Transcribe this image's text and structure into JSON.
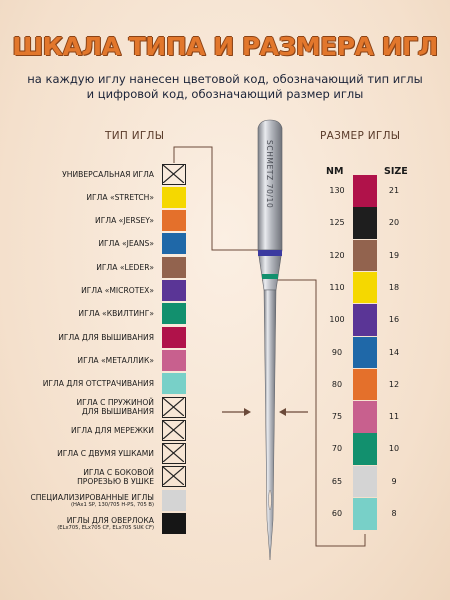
{
  "title": "ШКАЛА ТИПА И РАЗМЕРА ИГЛ",
  "subtitle_line1": "на каждую иглу нанесен цветовой код, обозначающий тип иглы",
  "subtitle_line2": "и цифровой код, обозначающий размер иглы",
  "type_heading": "ТИП ИГЛЫ",
  "size_heading": "РАЗМЕР ИГЛЫ",
  "nm_label": "NM",
  "size_label": "SIZE",
  "needle_text": "SCHMETZ 70/10",
  "types": [
    {
      "label": "УНИВЕРСАЛЬНАЯ ИГЛА",
      "color": "none"
    },
    {
      "label": "ИГЛА «STRETCH»",
      "color": "#f5d800"
    },
    {
      "label": "ИГЛА «JERSEY»",
      "color": "#e4702b"
    },
    {
      "label": "ИГЛА «JEANS»",
      "color": "#1f68a8"
    },
    {
      "label": "ИГЛА «LEDER»",
      "color": "#92634e"
    },
    {
      "label": "ИГЛА «MICROTEX»",
      "color": "#5a3596"
    },
    {
      "label": "ИГЛА «КВИЛТИНГ»",
      "color": "#12906e"
    },
    {
      "label": "ИГЛА ДЛЯ ВЫШИВАНИЯ",
      "color": "#b0124a"
    },
    {
      "label": "ИГЛА «МЕТАЛЛИК»",
      "color": "#c8608e"
    },
    {
      "label": "ИГЛА ДЛЯ ОТСТРАЧИВАНИЯ",
      "color": "#78d0c8"
    },
    {
      "label": "ИГЛА С ПРУЖИНОЙ",
      "label2": "ДЛЯ ВЫШИВАНИЯ",
      "color": "none"
    },
    {
      "label": "ИГЛА ДЛЯ МЕРЕЖКИ",
      "color": "none"
    },
    {
      "label": "ИГЛА С ДВУМЯ УШКАМИ",
      "color": "none"
    },
    {
      "label": "ИГЛА С БОКОВОЙ",
      "label2": "ПРОРЕЗЬЮ В УШКЕ",
      "color": "none"
    },
    {
      "label": "СПЕЦИАЛИЗИРОВАННЫЕ ИГЛЫ",
      "note": "(HAx1 SP, 130/705 H-PS, 705 B)",
      "color": "#d4d4d4"
    },
    {
      "label": "ИГЛЫ ДЛЯ ОВЕРЛОКА",
      "note": "(ELx705, ELx705 CF, ELx705 SUK CF)",
      "color": "#161616"
    }
  ],
  "sizes": [
    {
      "nm": "130",
      "size": "21",
      "color": "#b0124a"
    },
    {
      "nm": "125",
      "size": "20",
      "color": "#1e1e1e"
    },
    {
      "nm": "120",
      "size": "19",
      "color": "#92634e"
    },
    {
      "nm": "110",
      "size": "18",
      "color": "#f5d800"
    },
    {
      "nm": "100",
      "size": "16",
      "color": "#5a3596"
    },
    {
      "nm": "90",
      "size": "14",
      "color": "#1f68a8"
    },
    {
      "nm": "80",
      "size": "12",
      "color": "#e4702b"
    },
    {
      "nm": "75",
      "size": "11",
      "color": "#c8608e"
    },
    {
      "nm": "70",
      "size": "10",
      "color": "#12906e"
    },
    {
      "nm": "65",
      "size": "9",
      "color": "#d4d4d4"
    },
    {
      "nm": "60",
      "size": "8",
      "color": "#78d0c8"
    }
  ],
  "colors": {
    "accent": "#e2772c",
    "connector": "#6b4a3a",
    "needle_band_type": "#3b3aa0",
    "needle_band_size": "#12906e"
  }
}
